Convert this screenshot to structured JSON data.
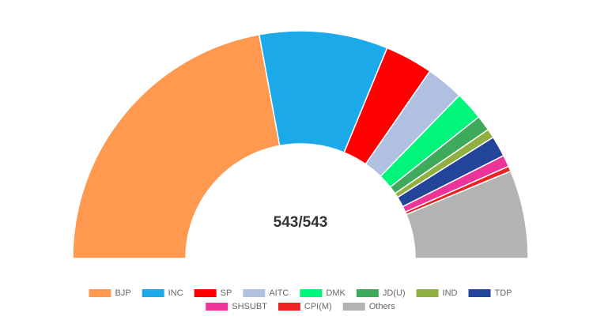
{
  "chart_data": {
    "type": "pie",
    "center_label": "543/543",
    "categories": [
      "BJP",
      "INC",
      "SP",
      "AITC",
      "DMK",
      "JD(U)",
      "IND",
      "TDP",
      "SHSUBT",
      "CPI(M)",
      "Others"
    ],
    "values": [
      240,
      99,
      37,
      29,
      22,
      12,
      7,
      16,
      9,
      4,
      68
    ],
    "colors": [
      "#ff9950",
      "#1ca9e9",
      "#ff0000",
      "#b0c0e0",
      "#00f57a",
      "#3daa5c",
      "#90b040",
      "#224499",
      "#ee3399",
      "#ee2222",
      "#b3b3b3"
    ],
    "legend": "bottom"
  }
}
